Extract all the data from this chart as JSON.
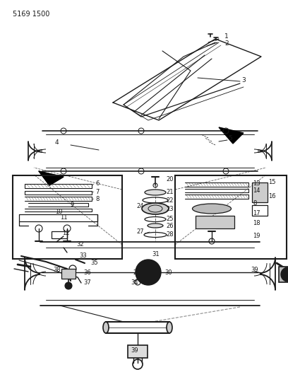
{
  "part_number": "5169 1500",
  "bg_color": "#ffffff",
  "line_color": "#1a1a1a",
  "gray_color": "#888888",
  "light_gray": "#dddddd",
  "figsize": [
    4.08,
    5.33
  ],
  "dpi": 100
}
